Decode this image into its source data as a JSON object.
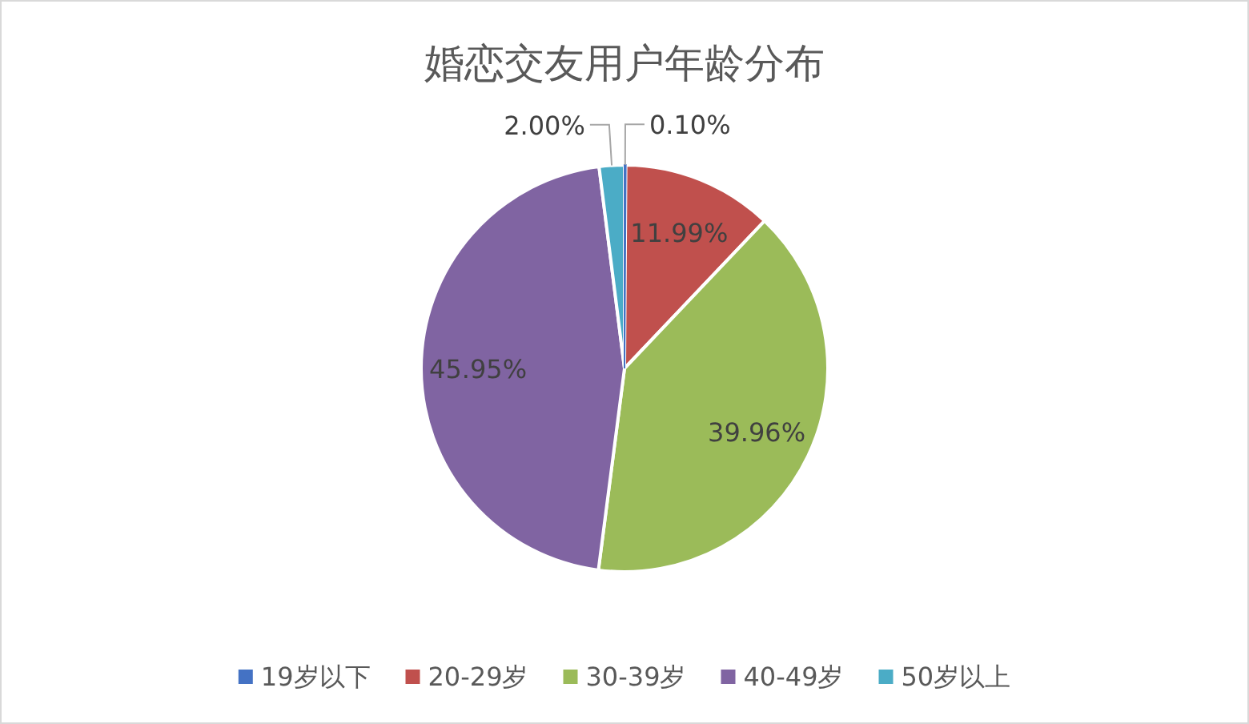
{
  "chart_data": {
    "type": "pie",
    "title": "婚恋交友用户年龄分布",
    "categories": [
      "19岁以下",
      "20-29岁",
      "30-39岁",
      "40-49岁",
      "50岁以上"
    ],
    "values": [
      0.1,
      11.99,
      39.96,
      45.95,
      2.0
    ],
    "colors": [
      "#4472c4",
      "#c0504d",
      "#9bbb59",
      "#8064a2",
      "#4bacc6"
    ],
    "value_labels": [
      "0.10%",
      "11.99%",
      "39.96%",
      "45.95%",
      "2.00%"
    ],
    "legend": "bottom"
  }
}
